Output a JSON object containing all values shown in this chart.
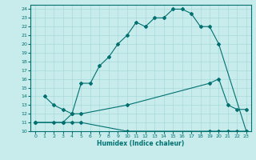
{
  "xlabel": "Humidex (Indice chaleur)",
  "xlim": [
    -0.5,
    23.5
  ],
  "ylim": [
    10,
    24.5
  ],
  "yticks": [
    10,
    11,
    12,
    13,
    14,
    15,
    16,
    17,
    18,
    19,
    20,
    21,
    22,
    23,
    24
  ],
  "xticks": [
    0,
    1,
    2,
    3,
    4,
    5,
    6,
    7,
    8,
    9,
    10,
    11,
    12,
    13,
    14,
    15,
    16,
    17,
    18,
    19,
    20,
    21,
    22,
    23
  ],
  "bg_color": "#c8ecec",
  "line_color": "#007070",
  "grid_color": "#a8d8d8",
  "curve1_x": [
    1,
    2,
    3,
    4,
    5,
    6,
    7,
    8,
    9,
    10,
    11,
    12,
    13,
    14,
    15,
    16,
    17,
    18,
    19,
    20,
    23
  ],
  "curve1_y": [
    14,
    13,
    12.5,
    12,
    15.5,
    15.5,
    17.5,
    18.5,
    20,
    21,
    22.5,
    22,
    23,
    23,
    24,
    24,
    23.5,
    22,
    22,
    20,
    10
  ],
  "curve2_x": [
    0,
    2,
    3,
    4,
    5,
    10,
    19,
    20,
    21,
    22,
    23
  ],
  "curve2_y": [
    11,
    11,
    11,
    12,
    12,
    13,
    15.5,
    16,
    13,
    12.5,
    12.5
  ],
  "curve3_x": [
    0,
    3,
    4,
    5,
    10,
    19,
    20,
    21,
    22,
    23
  ],
  "curve3_y": [
    11,
    11,
    11,
    11,
    10,
    10,
    10,
    10,
    10,
    10
  ]
}
